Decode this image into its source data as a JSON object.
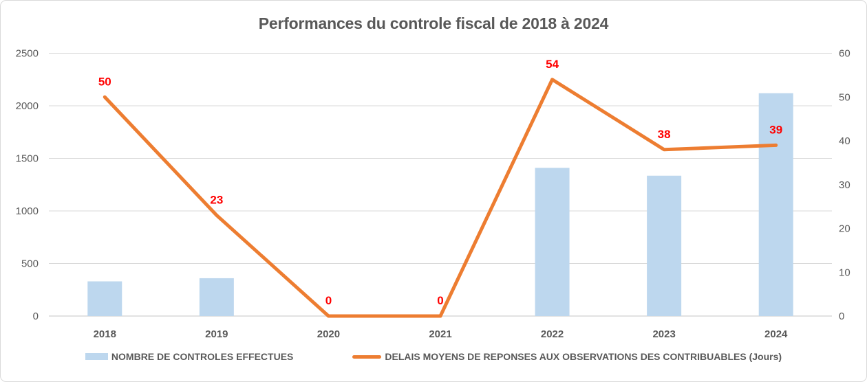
{
  "chart_data": {
    "type": "combo-bar-line",
    "title": "Performances du controle fiscal de 2018 à 2024",
    "categories": [
      "2018",
      "2019",
      "2020",
      "2021",
      "2022",
      "2023",
      "2024"
    ],
    "series": [
      {
        "name": "NOMBRE DE CONTROLES EFFECTUES",
        "type": "bar",
        "axis": "left",
        "values": [
          330,
          360,
          0,
          0,
          1410,
          1335,
          2120
        ]
      },
      {
        "name": "DELAIS MOYENS DE REPONSES AUX OBSERVATIONS DES CONTRIBUABLES (Jours)",
        "type": "line",
        "axis": "right",
        "values": [
          50,
          23,
          0,
          0,
          54,
          38,
          39
        ],
        "data_labels": true
      }
    ],
    "left_axis": {
      "min": 0,
      "max": 2500,
      "step": 500,
      "ticks": [
        "0",
        "500",
        "1000",
        "1500",
        "2000",
        "2500"
      ]
    },
    "right_axis": {
      "min": 0,
      "max": 60,
      "step": 10,
      "ticks": [
        "0",
        "10",
        "20",
        "30",
        "40",
        "50",
        "60"
      ]
    },
    "grid": true,
    "legend_position": "bottom",
    "colors": {
      "bar": "#bdd7ee",
      "line": "#ed7d31",
      "data_label": "#ff0000",
      "text": "#595959",
      "grid": "#d9d9d9",
      "background": "#ffffff"
    }
  }
}
